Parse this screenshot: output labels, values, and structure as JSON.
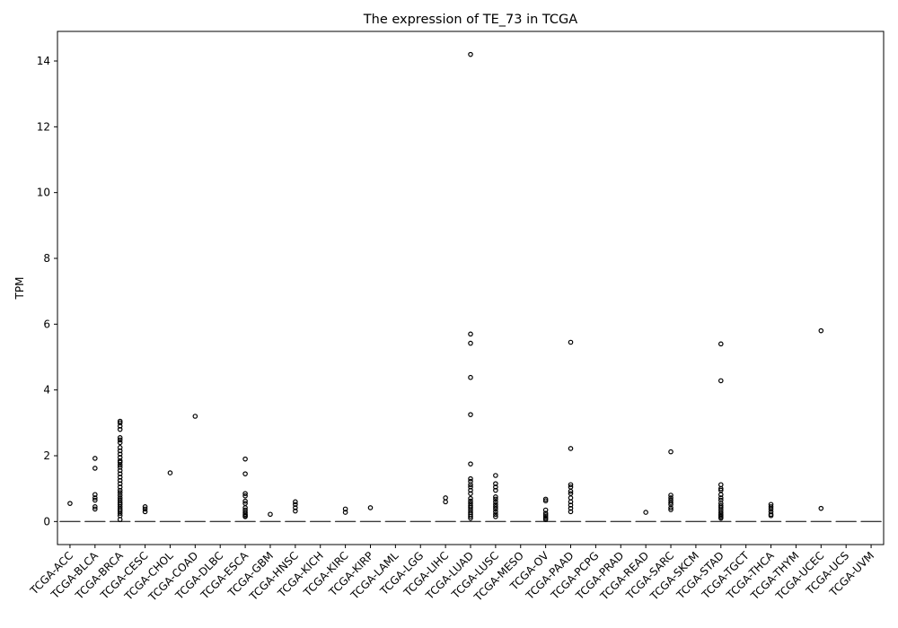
{
  "chart_data": {
    "type": "box",
    "title": "The expression of TE_73 in TCGA",
    "xlabel": "",
    "ylabel": "TPM",
    "ylim": [
      -0.7,
      14.9
    ],
    "yticks": [
      0,
      2,
      4,
      6,
      8,
      10,
      12,
      14
    ],
    "grid": false,
    "categories": [
      "TCGA-ACC",
      "TCGA-BLCA",
      "TCGA-BRCA",
      "TCGA-CESC",
      "TCGA-CHOL",
      "TCGA-COAD",
      "TCGA-DLBC",
      "TCGA-ESCA",
      "TCGA-GBM",
      "TCGA-HNSC",
      "TCGA-KICH",
      "TCGA-KIRC",
      "TCGA-KIRP",
      "TCGA-LAML",
      "TCGA-LGG",
      "TCGA-LIHC",
      "TCGA-LUAD",
      "TCGA-LUSC",
      "TCGA-MESO",
      "TCGA-OV",
      "TCGA-PAAD",
      "TCGA-PCPG",
      "TCGA-PRAD",
      "TCGA-READ",
      "TCGA-SARC",
      "TCGA-SKCM",
      "TCGA-STAD",
      "TCGA-TGCT",
      "TCGA-THCA",
      "TCGA-THYM",
      "TCGA-UCEC",
      "TCGA-UCS",
      "TCGA-UVM"
    ],
    "median": 0,
    "q1": 0,
    "q3": 0,
    "outliers": {
      "TCGA-ACC": [
        0.55
      ],
      "TCGA-BLCA": [
        1.92,
        1.62,
        0.82,
        0.72,
        0.65,
        0.45,
        0.38
      ],
      "TCGA-BRCA": [
        3.05,
        3.0,
        2.9,
        2.8,
        2.55,
        2.48,
        2.4,
        2.25,
        2.15,
        2.05,
        1.95,
        1.85,
        1.8,
        1.72,
        1.65,
        1.55,
        1.45,
        1.35,
        1.25,
        1.15,
        1.05,
        0.95,
        0.88,
        0.8,
        0.72,
        0.65,
        0.58,
        0.52,
        0.45,
        0.38,
        0.32,
        0.25,
        0.18,
        0.06
      ],
      "TCGA-CESC": [
        0.45,
        0.38,
        0.3
      ],
      "TCGA-CHOL": [
        1.48
      ],
      "TCGA-COAD": [
        3.2
      ],
      "TCGA-DLBC": [],
      "TCGA-ESCA": [
        1.9,
        1.45,
        0.85,
        0.78,
        0.62,
        0.55,
        0.42,
        0.35,
        0.28,
        0.22,
        0.18,
        0.15
      ],
      "TCGA-GBM": [
        0.22
      ],
      "TCGA-HNSC": [
        0.6,
        0.52,
        0.42,
        0.32
      ],
      "TCGA-KICH": [],
      "TCGA-KIRC": [
        0.38,
        0.28
      ],
      "TCGA-KIRP": [
        0.42
      ],
      "TCGA-LAML": [],
      "TCGA-LGG": [],
      "TCGA-LIHC": [
        0.72,
        0.6
      ],
      "TCGA-LUAD": [
        14.2,
        5.7,
        5.42,
        4.38,
        3.25,
        1.75,
        1.3,
        1.22,
        1.12,
        1.05,
        0.95,
        0.85,
        0.7,
        0.62,
        0.55,
        0.48,
        0.42,
        0.35,
        0.28,
        0.22,
        0.16,
        0.1
      ],
      "TCGA-LUSC": [
        1.4,
        1.15,
        1.05,
        0.95,
        0.75,
        0.68,
        0.6,
        0.52,
        0.45,
        0.38,
        0.3,
        0.22,
        0.15
      ],
      "TCGA-MESO": [],
      "TCGA-OV": [
        0.68,
        0.63,
        0.35,
        0.25,
        0.2,
        0.15,
        0.1,
        0.06
      ],
      "TCGA-PAAD": [
        5.45,
        2.22,
        1.12,
        1.05,
        0.92,
        0.85,
        0.72,
        0.6,
        0.5,
        0.4,
        0.3
      ],
      "TCGA-PCPG": [],
      "TCGA-PRAD": [],
      "TCGA-READ": [
        0.28
      ],
      "TCGA-SARC": [
        2.12,
        0.8,
        0.72,
        0.65,
        0.58,
        0.52,
        0.42,
        0.36
      ],
      "TCGA-SKCM": [],
      "TCGA-STAD": [
        5.4,
        4.28,
        1.12,
        1.0,
        0.95,
        0.82,
        0.72,
        0.65,
        0.55,
        0.48,
        0.42,
        0.35,
        0.28,
        0.22,
        0.18,
        0.14,
        0.1
      ],
      "TCGA-TGCT": [],
      "TCGA-THCA": [
        0.52,
        0.45,
        0.38,
        0.3,
        0.22,
        0.18
      ],
      "TCGA-THYM": [],
      "TCGA-UCEC": [
        5.8,
        0.4
      ],
      "TCGA-UCS": [],
      "TCGA-UVM": []
    }
  }
}
